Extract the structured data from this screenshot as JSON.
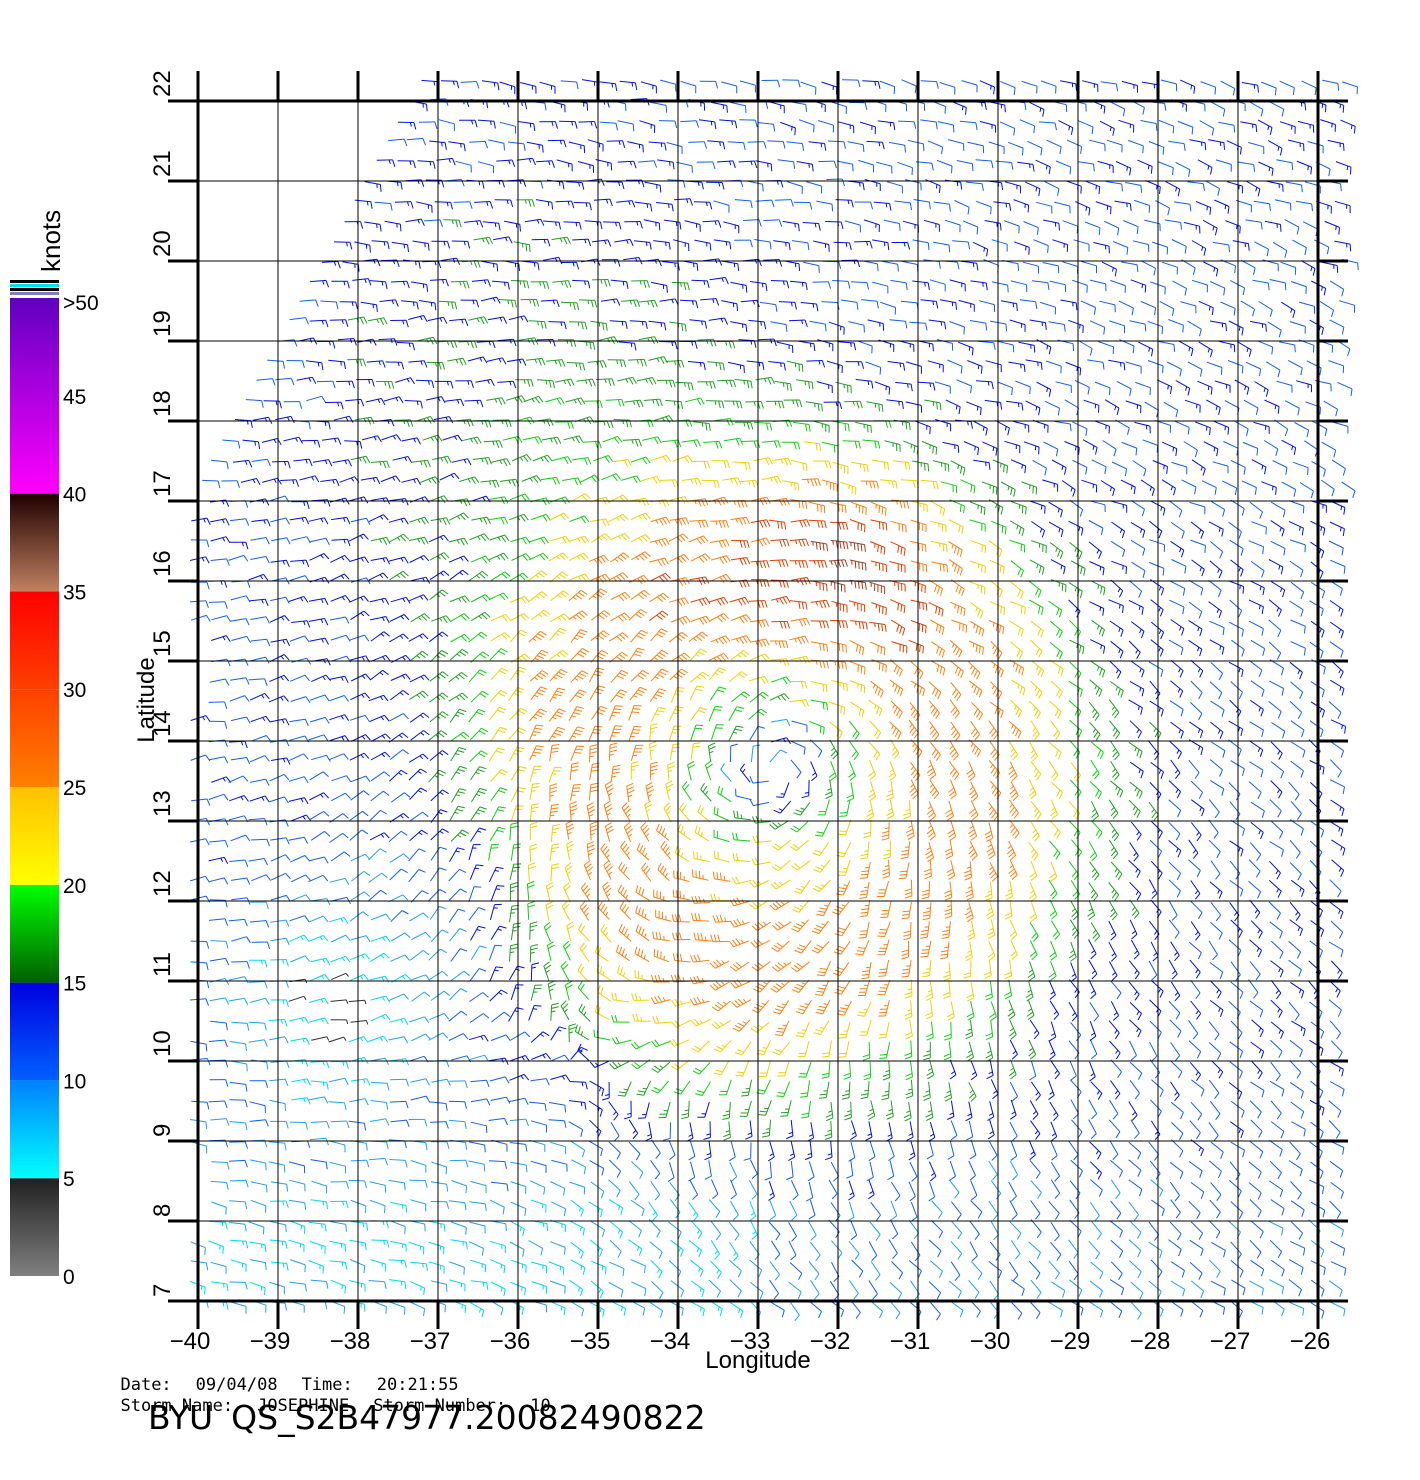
{
  "map": {
    "type": "wind-barb-map",
    "x_axis": {
      "label": "Longitude",
      "range": [
        -40,
        -26
      ],
      "ticks": [
        "−40",
        "−39",
        "−38",
        "−37",
        "−36",
        "−35",
        "−34",
        "−33",
        "−32",
        "−31",
        "−30",
        "−29",
        "−28",
        "−27",
        "−26"
      ]
    },
    "y_axis": {
      "label": "Latitude",
      "range": [
        7,
        22
      ],
      "ticks": [
        "7",
        "8",
        "9",
        "10",
        "11",
        "12",
        "13",
        "14",
        "15",
        "16",
        "17",
        "18",
        "19",
        "20",
        "21",
        "22"
      ]
    },
    "storm_center": {
      "lon": -32.8,
      "lat": 13.7
    },
    "grid": true
  },
  "colorbar": {
    "title": "knots",
    "labels": [
      "0",
      "5",
      "10",
      "15",
      "20",
      "25",
      "30",
      "35",
      "40",
      "45",
      ">50"
    ],
    "bands": [
      {
        "from": 0,
        "to": 5,
        "colors": [
          "#808080",
          "#202020"
        ]
      },
      {
        "from": 5,
        "to": 10,
        "colors": [
          "#00ffff",
          "#0080ff"
        ]
      },
      {
        "from": 10,
        "to": 15,
        "colors": [
          "#0060ff",
          "#0000e0"
        ]
      },
      {
        "from": 15,
        "to": 20,
        "colors": [
          "#006000",
          "#00ff00"
        ]
      },
      {
        "from": 20,
        "to": 25,
        "colors": [
          "#ffff00",
          "#ffc000"
        ]
      },
      {
        "from": 25,
        "to": 30,
        "colors": [
          "#ff8000",
          "#ff4000"
        ]
      },
      {
        "from": 30,
        "to": 35,
        "colors": [
          "#ff4000",
          "#ff0000"
        ]
      },
      {
        "from": 35,
        "to": 40,
        "colors": [
          "#c08060",
          "#200000"
        ]
      },
      {
        "from": 40,
        "to": 50,
        "colors": [
          "#ff00ff",
          "#6000c0"
        ]
      }
    ]
  },
  "info": {
    "date_label": "Date:",
    "date": "09/04/08",
    "time_label": "Time:",
    "time": "20:21:55",
    "storm_name_label": "Storm Name:",
    "storm_name": "JOSEPHINE",
    "storm_number_label": "Storm Number:",
    "storm_number": "10",
    "source": "BYU",
    "file_id": "QS_S2B47977.20082490822"
  }
}
